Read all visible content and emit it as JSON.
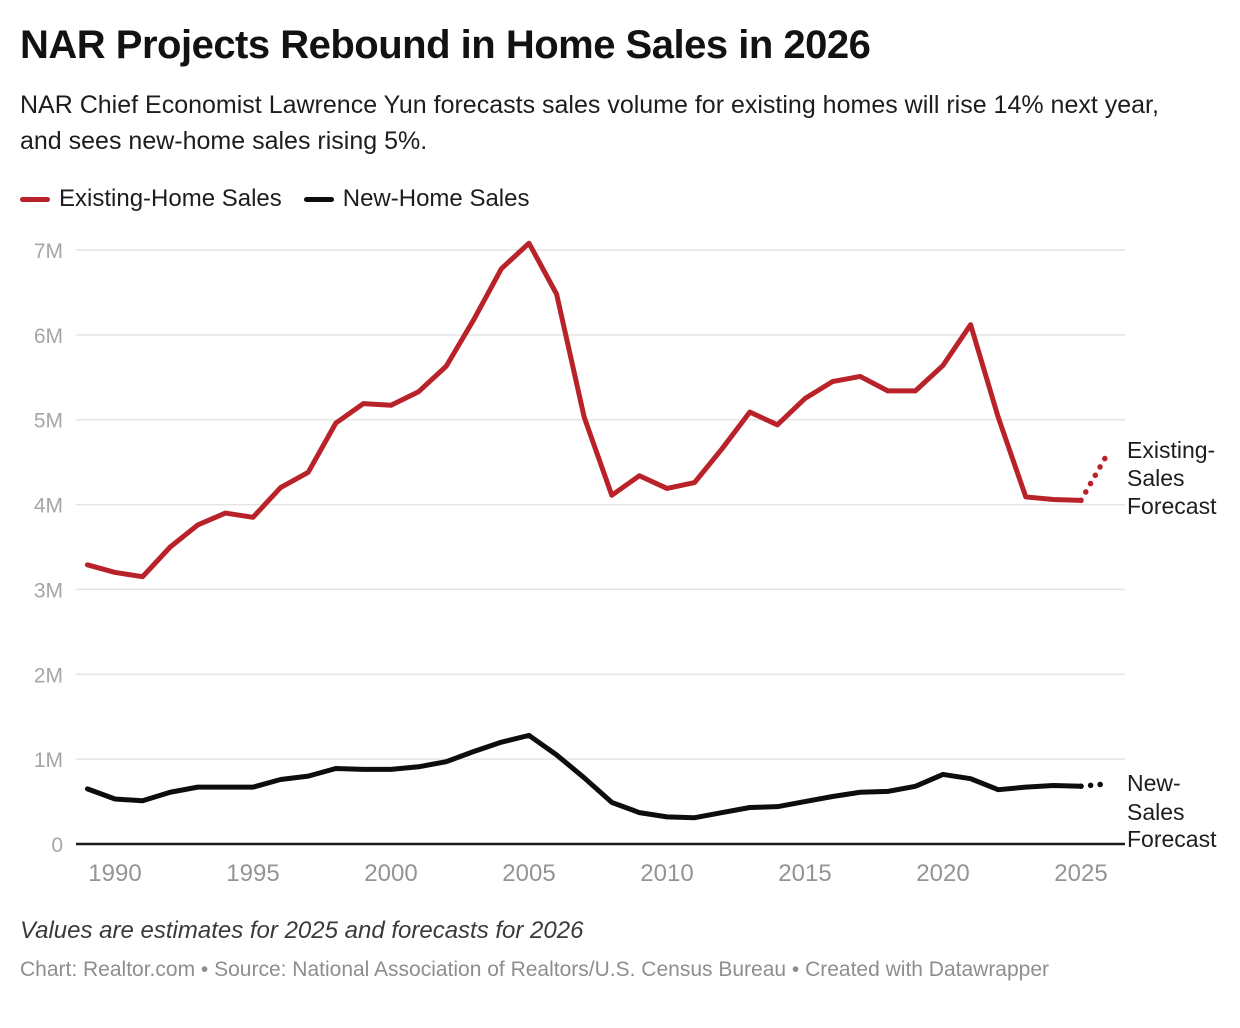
{
  "title": "NAR Projects Rebound in Home Sales in 2026",
  "subtitle": "NAR Chief Economist Lawrence Yun forecasts sales volume for existing homes will rise 14% next year, and sees new-home sales rising 5%.",
  "annotations": {
    "existing": [
      "Existing-",
      "Sales",
      "Forecast"
    ],
    "new": [
      "New-",
      "Sales",
      "Forecast"
    ]
  },
  "note": "Values are estimates for 2025 and forecasts for 2026",
  "credit": "Chart: Realtor.com • Source: National Association of Realtors/U.S. Census Bureau • Created with Datawrapper",
  "colors": {
    "existing_line": "#b92228",
    "new_line": "#0d0d0d",
    "grid": "#e4e4e4",
    "axis": "#1a1a1a"
  },
  "chart_data": {
    "type": "line",
    "title": "NAR Projects Rebound in Home Sales in 2026",
    "xlabel": "",
    "ylabel": "",
    "grid": true,
    "legend_position": "top",
    "ylim": [
      0,
      7.4
    ],
    "yticks": [
      "0",
      "1M",
      "2M",
      "3M",
      "4M",
      "5M",
      "6M",
      "7M"
    ],
    "xticks": [
      1990,
      1995,
      2000,
      2005,
      2010,
      2015,
      2020,
      2025
    ],
    "x": [
      1989,
      1990,
      1991,
      1992,
      1993,
      1994,
      1995,
      1996,
      1997,
      1998,
      1999,
      2000,
      2001,
      2002,
      2003,
      2004,
      2005,
      2006,
      2007,
      2008,
      2009,
      2010,
      2011,
      2012,
      2013,
      2014,
      2015,
      2016,
      2017,
      2018,
      2019,
      2020,
      2021,
      2022,
      2023,
      2024,
      2025,
      2026
    ],
    "units": "millions of homes",
    "series": [
      {
        "name": "Existing-Home Sales",
        "color": "#b92228",
        "solid_until": 2025,
        "values": [
          3.29,
          3.2,
          3.15,
          3.5,
          3.76,
          3.9,
          3.85,
          4.2,
          4.38,
          4.96,
          5.19,
          5.17,
          5.33,
          5.63,
          6.18,
          6.78,
          7.08,
          6.48,
          5.03,
          4.11,
          4.34,
          4.19,
          4.26,
          4.66,
          5.09,
          4.94,
          5.25,
          5.45,
          5.51,
          5.34,
          5.34,
          5.64,
          6.12,
          5.03,
          4.09,
          4.06,
          4.05,
          4.62
        ]
      },
      {
        "name": "New-Home Sales",
        "color": "#0d0d0d",
        "solid_until": 2025,
        "values": [
          0.65,
          0.53,
          0.51,
          0.61,
          0.67,
          0.67,
          0.67,
          0.76,
          0.8,
          0.89,
          0.88,
          0.88,
          0.91,
          0.97,
          1.09,
          1.2,
          1.28,
          1.05,
          0.78,
          0.49,
          0.37,
          0.32,
          0.31,
          0.37,
          0.43,
          0.44,
          0.5,
          0.56,
          0.61,
          0.62,
          0.68,
          0.82,
          0.77,
          0.64,
          0.67,
          0.69,
          0.68,
          0.71
        ]
      }
    ]
  }
}
